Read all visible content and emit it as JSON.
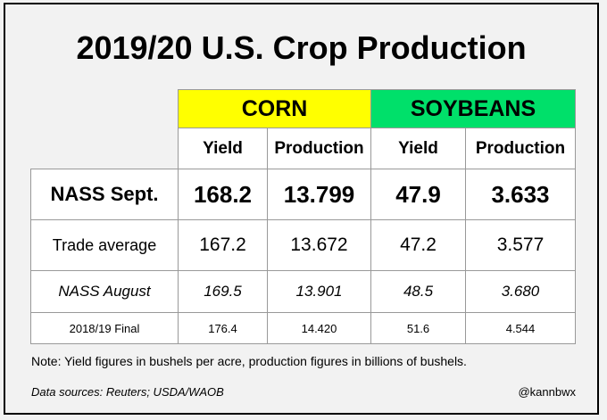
{
  "chart_data": {
    "type": "table",
    "title": "2019/20 U.S. Crop Production",
    "groups": [
      {
        "name": "CORN",
        "color": "#ffff00",
        "columns": [
          "Yield",
          "Production"
        ]
      },
      {
        "name": "SOYBEANS",
        "color": "#00e06a",
        "columns": [
          "Yield",
          "Production"
        ]
      }
    ],
    "rows": [
      {
        "label": "NASS Sept.",
        "values": [
          "168.2",
          "13.799",
          "47.9",
          "3.633"
        ]
      },
      {
        "label": "Trade average",
        "values": [
          "167.2",
          "13.672",
          "47.2",
          "3.577"
        ]
      },
      {
        "label": "NASS August",
        "values": [
          "169.5",
          "13.901",
          "48.5",
          "3.680"
        ]
      },
      {
        "label": "2018/19 Final",
        "values": [
          "176.4",
          "14.420",
          "51.6",
          "4.544"
        ]
      }
    ]
  },
  "footer": {
    "note": "Note: Yield figures in bushels per acre, production figures in billions of bushels.",
    "sources": "Data sources: Reuters; USDA/WAOB",
    "handle": "@kannbwx"
  }
}
